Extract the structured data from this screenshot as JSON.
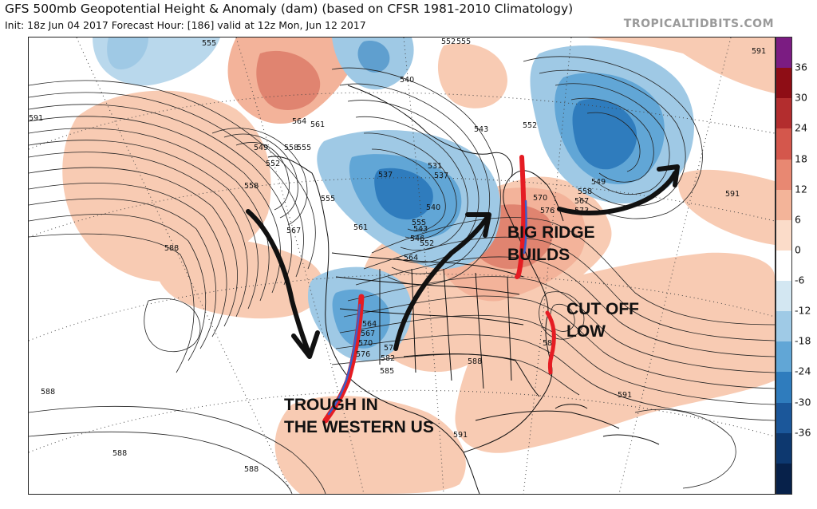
{
  "header": {
    "title": "GFS 500mb Geopotential Height & Anomaly (dam) (based on CFSR 1981-2010 Climatology)",
    "subtitle": "Init: 18z Jun 04 2017   Forecast Hour: [186]   valid at 12z Mon, Jun 12 2017",
    "brand": "TROPICALTIDBITS.COM"
  },
  "annotations": {
    "big_ridge_line1": "BIG RIDGE",
    "big_ridge_line2": "BUILDS",
    "cutoff_line1": "CUT OFF",
    "cutoff_line2": "LOW",
    "trough_line1": "TROUGH IN",
    "trough_line2": "THE WESTERN US"
  },
  "contour_labels": [
    {
      "id": "c555a",
      "text": "555"
    },
    {
      "id": "c591nw",
      "text": "591"
    },
    {
      "id": "c549w",
      "text": "549"
    },
    {
      "id": "c552w",
      "text": "552"
    },
    {
      "id": "c558a",
      "text": "558"
    },
    {
      "id": "c555b",
      "text": "555"
    },
    {
      "id": "c564a",
      "text": "564"
    },
    {
      "id": "c561a",
      "text": "561"
    },
    {
      "id": "c558w",
      "text": "558"
    },
    {
      "id": "c567w",
      "text": "567"
    },
    {
      "id": "c588w",
      "text": "588"
    },
    {
      "id": "c555c",
      "text": "555"
    },
    {
      "id": "c561b",
      "text": "561"
    },
    {
      "id": "c537a",
      "text": "537"
    },
    {
      "id": "c540a",
      "text": "540"
    },
    {
      "id": "c531a",
      "text": "531"
    },
    {
      "id": "c537b",
      "text": "537"
    },
    {
      "id": "c540b",
      "text": "540"
    },
    {
      "id": "c543a",
      "text": "543"
    },
    {
      "id": "c546a",
      "text": "546"
    },
    {
      "id": "c552a",
      "text": "552"
    },
    {
      "id": "c555d",
      "text": "555"
    },
    {
      "id": "c564b",
      "text": "564"
    },
    {
      "id": "c552top",
      "text": "552"
    },
    {
      "id": "c555top",
      "text": "555"
    },
    {
      "id": "c543b",
      "text": "543"
    },
    {
      "id": "c552b",
      "text": "552"
    },
    {
      "id": "c591ne",
      "text": "591"
    },
    {
      "id": "c549e",
      "text": "549"
    },
    {
      "id": "c558e",
      "text": "558"
    },
    {
      "id": "c567e",
      "text": "567"
    },
    {
      "id": "c573e",
      "text": "573"
    },
    {
      "id": "c570e",
      "text": "570"
    },
    {
      "id": "c576e",
      "text": "576"
    },
    {
      "id": "c591e",
      "text": "591"
    },
    {
      "id": "c564c",
      "text": "564"
    },
    {
      "id": "c567c",
      "text": "567"
    },
    {
      "id": "c570c",
      "text": "570"
    },
    {
      "id": "c576c",
      "text": "576"
    },
    {
      "id": "c579c",
      "text": "579"
    },
    {
      "id": "c582c",
      "text": "582"
    },
    {
      "id": "c585c",
      "text": "585"
    },
    {
      "id": "c588c",
      "text": "588"
    },
    {
      "id": "c58x",
      "text": "58"
    },
    {
      "id": "c591se",
      "text": "591"
    },
    {
      "id": "c591s",
      "text": "591"
    },
    {
      "id": "c588sw",
      "text": "588"
    },
    {
      "id": "c588ssw",
      "text": "588"
    },
    {
      "id": "c588s",
      "text": "588"
    }
  ],
  "colorbar": {
    "labels": [
      "36",
      "30",
      "24",
      "18",
      "12",
      "6",
      "0",
      "-6",
      "-12",
      "-18",
      "-24",
      "-30",
      "-36"
    ],
    "colors": [
      "#7b1c82",
      "#8e0d15",
      "#b32d2e",
      "#d4574c",
      "#e88872",
      "#f3b499",
      "#fbdcc9",
      "#ffffff",
      "#d3e7f2",
      "#9fcae6",
      "#61a6d6",
      "#2f7cbd",
      "#1b579a",
      "#0d386f",
      "#07214a"
    ]
  }
}
